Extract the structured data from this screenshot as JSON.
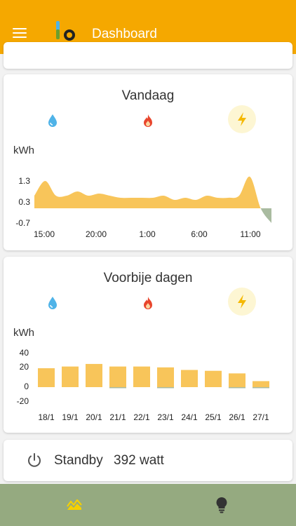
{
  "header": {
    "title": "Dashboard",
    "menu_icon": "menu-icon",
    "logo": "app-logo"
  },
  "today": {
    "title": "Vandaag",
    "unit": "kWh",
    "utilities": [
      {
        "icon": "water-drop-icon",
        "color": "#4fb3e8",
        "selected": false
      },
      {
        "icon": "flame-icon",
        "color": "#e8452c",
        "selected": false
      },
      {
        "icon": "lightning-icon",
        "color": "#f5b800",
        "selected": true
      }
    ]
  },
  "past": {
    "title": "Voorbije dagen",
    "unit": "kWh",
    "utilities": [
      {
        "icon": "water-drop-icon",
        "color": "#4fb3e8",
        "selected": false
      },
      {
        "icon": "flame-icon",
        "color": "#e8452c",
        "selected": false
      },
      {
        "icon": "lightning-icon",
        "color": "#f5b800",
        "selected": true
      }
    ]
  },
  "standby": {
    "label": "Standby",
    "value": "392 watt",
    "icon": "power-icon"
  },
  "nav": [
    {
      "icon": "chart-icon",
      "active": true
    },
    {
      "icon": "lightbulb-icon",
      "active": false
    }
  ],
  "colors": {
    "accent": "#f5a800",
    "area": "#f8c55a",
    "negative": "#a9bba0",
    "nav_bg": "#95aa80"
  },
  "chart_data": [
    {
      "type": "area",
      "title": "Vandaag",
      "ylabel": "kWh",
      "y_ticks": [
        "1.3",
        "0.3",
        "-0.7"
      ],
      "x_ticks": [
        "15:00",
        "20:00",
        "1:00",
        "6:00",
        "11:00"
      ],
      "ylim": [
        -0.7,
        1.3
      ],
      "x": [
        "15:00",
        "16:00",
        "17:00",
        "18:00",
        "19:00",
        "20:00",
        "21:00",
        "22:00",
        "23:00",
        "0:00",
        "1:00",
        "2:00",
        "3:00",
        "4:00",
        "5:00",
        "6:00",
        "7:00",
        "8:00",
        "9:00",
        "10:00",
        "11:00",
        "12:00",
        "13:00"
      ],
      "values": [
        0.6,
        1.3,
        0.6,
        0.6,
        0.8,
        0.6,
        0.7,
        0.6,
        0.5,
        0.5,
        0.5,
        0.5,
        0.6,
        0.4,
        0.5,
        0.4,
        0.6,
        0.5,
        0.5,
        0.6,
        1.5,
        0.0,
        -0.7
      ]
    },
    {
      "type": "bar",
      "title": "Voorbije dagen",
      "ylabel": "kWh",
      "y_ticks": [
        "40",
        "20",
        "0",
        "-20"
      ],
      "categories": [
        "18/1",
        "19/1",
        "20/1",
        "21/1",
        "22/1",
        "23/1",
        "24/1",
        "25/1",
        "26/1",
        "27/1"
      ],
      "values": [
        22,
        24,
        27,
        24,
        24,
        23,
        20,
        19,
        16,
        7
      ],
      "negative_values": [
        0,
        0,
        0,
        -1,
        0,
        -1,
        0,
        0,
        -1,
        -1
      ],
      "ylim": [
        -20,
        40
      ]
    }
  ]
}
